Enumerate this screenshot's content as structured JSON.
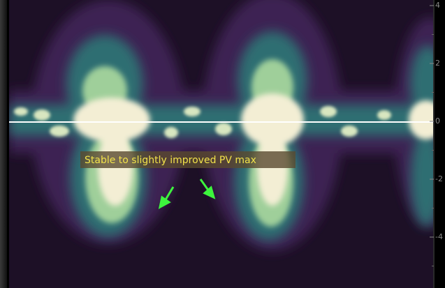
{
  "annotation": {
    "text": "Stable to slightly improved PV max"
  },
  "scale": {
    "labels": [
      "4",
      "2",
      "0",
      "-2",
      "-4"
    ]
  }
}
